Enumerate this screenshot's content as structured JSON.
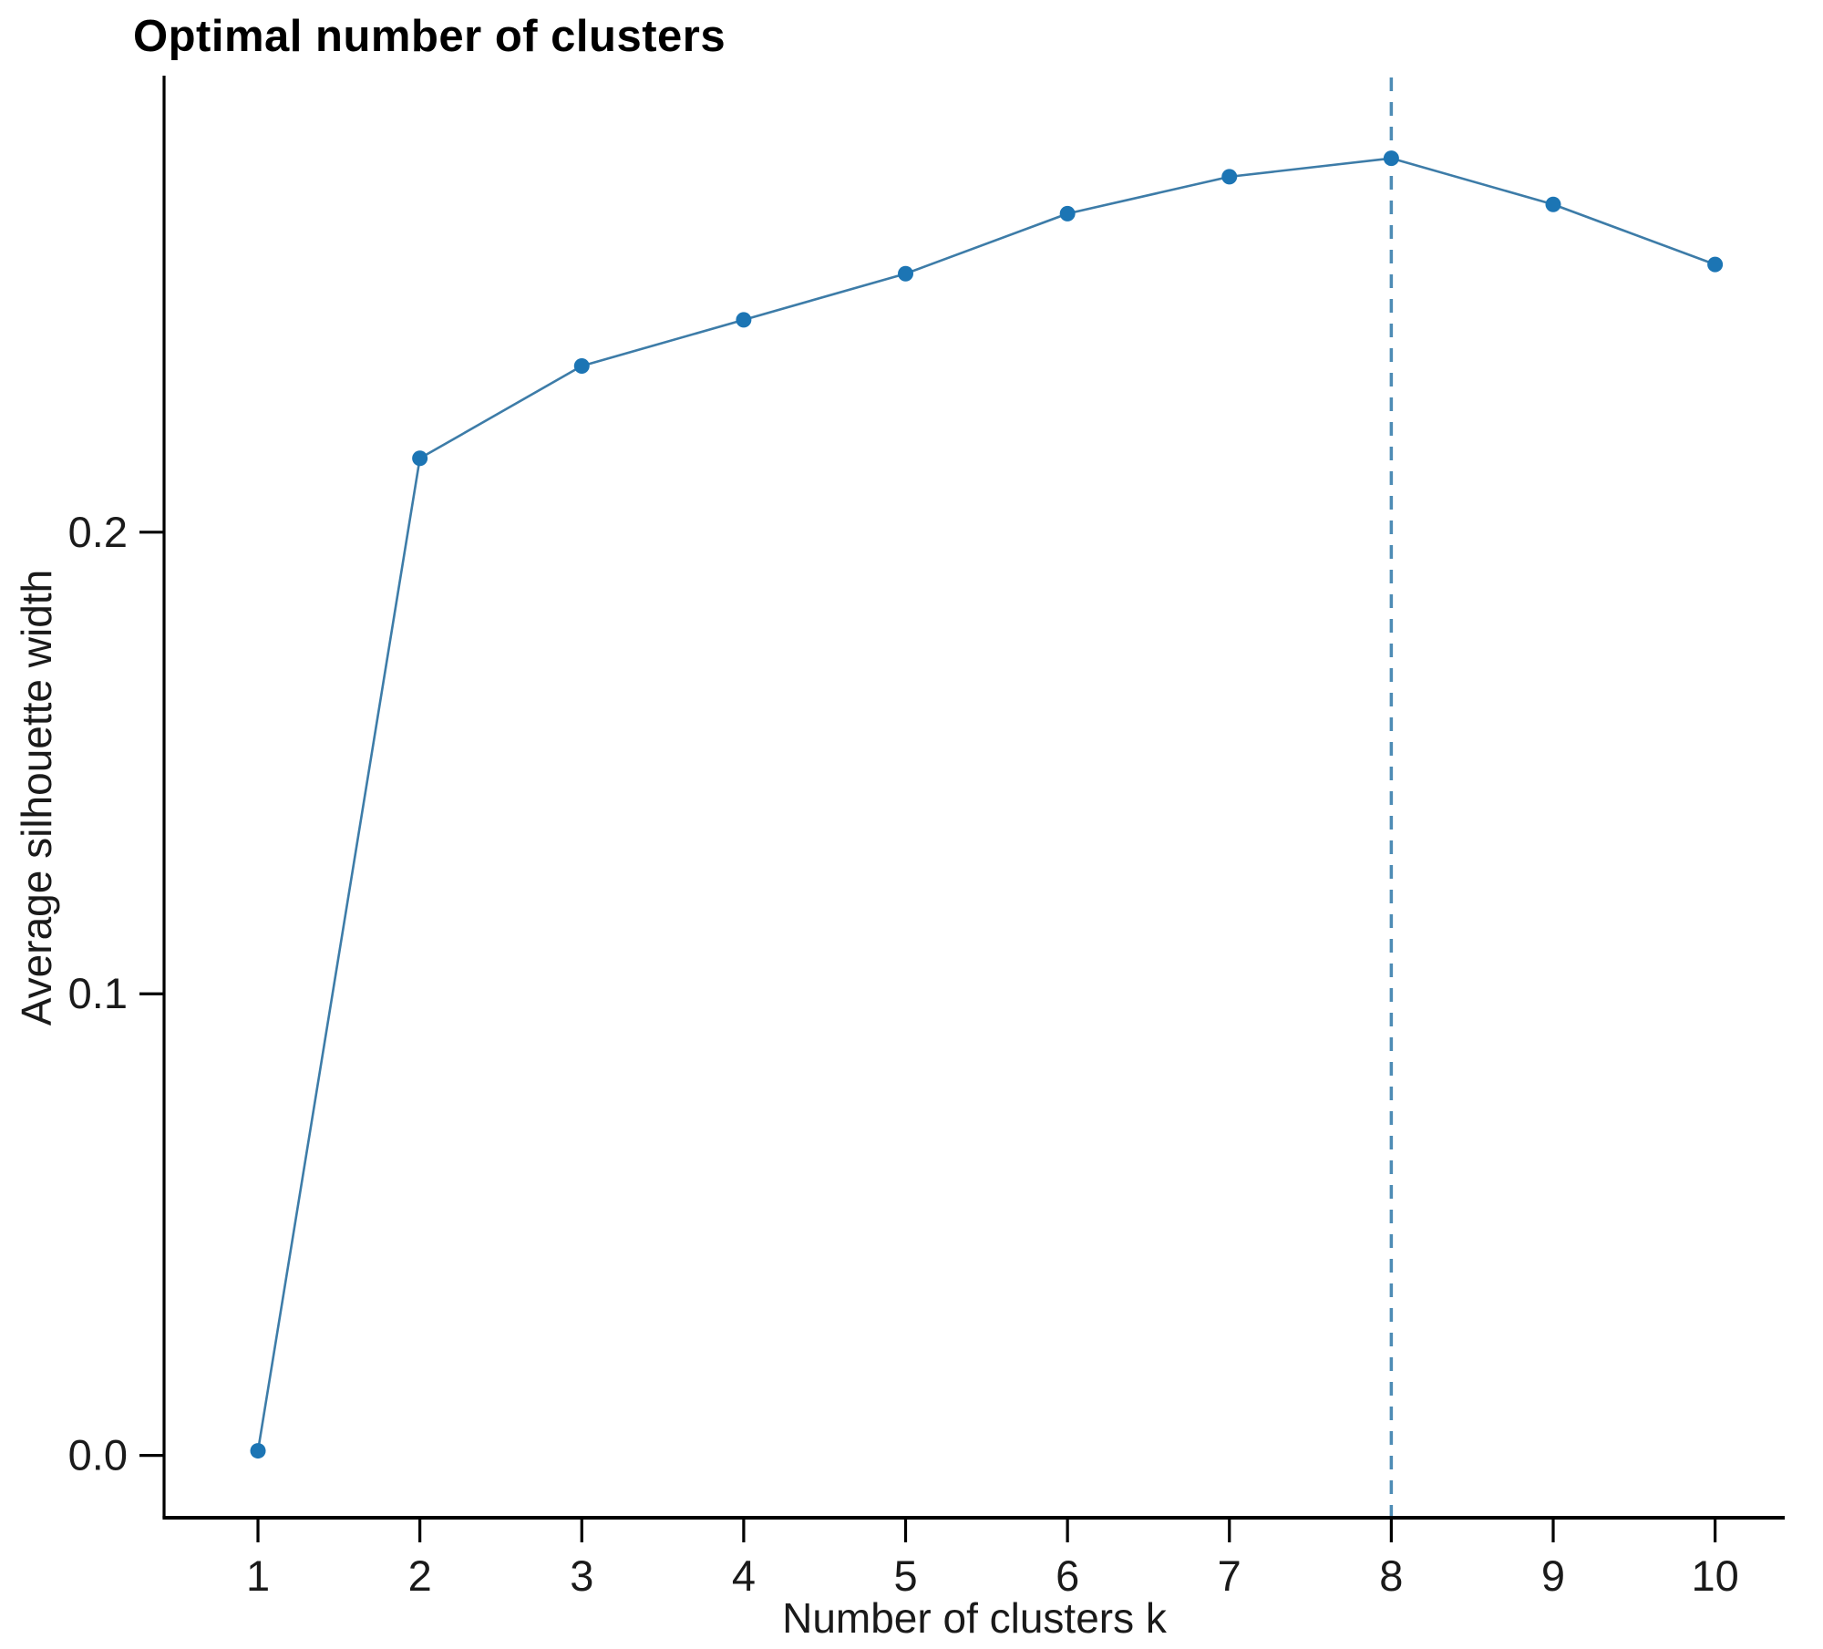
{
  "page": {
    "background_color": "#ffffff"
  },
  "chart_data": {
    "type": "line",
    "title": "Optimal number of clusters",
    "xlabel": "Number of clusters k",
    "ylabel": "Average silhouette width",
    "x": [
      1,
      2,
      3,
      4,
      5,
      6,
      7,
      8,
      9,
      10
    ],
    "series": [
      {
        "name": "Average silhouette width",
        "values": [
          0.001,
          0.216,
          0.236,
          0.246,
          0.256,
          0.269,
          0.277,
          0.281,
          0.271,
          0.258
        ]
      }
    ],
    "xticks": [
      {
        "value": 1,
        "label": "1"
      },
      {
        "value": 2,
        "label": "2"
      },
      {
        "value": 3,
        "label": "3"
      },
      {
        "value": 4,
        "label": "4"
      },
      {
        "value": 5,
        "label": "5"
      },
      {
        "value": 6,
        "label": "6"
      },
      {
        "value": 7,
        "label": "7"
      },
      {
        "value": 8,
        "label": "8"
      },
      {
        "value": 9,
        "label": "9"
      },
      {
        "value": 10,
        "label": "10"
      }
    ],
    "yticks": [
      {
        "value": 0.0,
        "label": "0.0"
      },
      {
        "value": 0.1,
        "label": "0.1"
      },
      {
        "value": 0.2,
        "label": "0.2"
      }
    ],
    "xlim": [
      0.42,
      10.43
    ],
    "ylim": [
      -0.0135,
      0.2985
    ],
    "grid": false,
    "legend": "none",
    "vline": {
      "x": 8,
      "style": "dashed"
    },
    "colors": {
      "line": "#3d7ca8",
      "marker": "#1c75b4",
      "vline": "#4e8cb5",
      "axis": "#000000",
      "tick_text": "#1a1a1a"
    }
  }
}
